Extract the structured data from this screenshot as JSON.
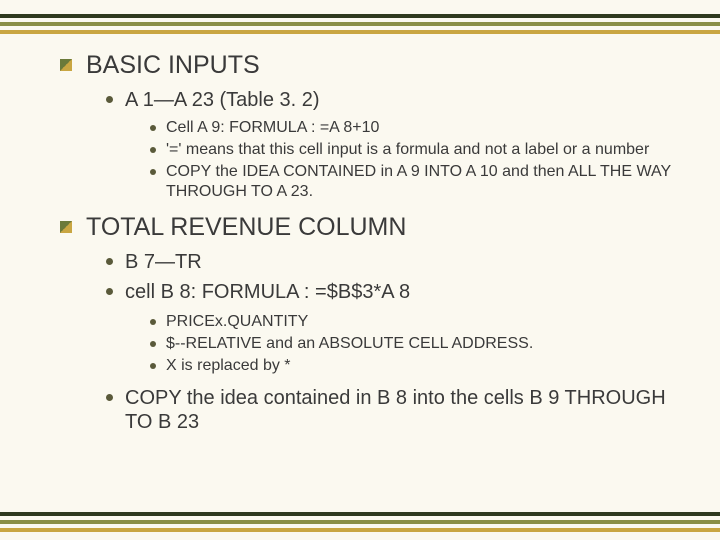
{
  "theme": {
    "background": "#fbf9f0",
    "stripe_dark": "#2f3a1f",
    "stripe_olive": "#8a8f46",
    "stripe_gold": "#c9a642",
    "text_color": "#3a3a3a",
    "bullet_dot_color": "#5a5a3a",
    "diamond_gradient_from": "#6b7a3a",
    "diamond_gradient_to": "#c9a642",
    "fontsize_lvl1": 25,
    "fontsize_lvl2": 20,
    "fontsize_lvl3": 16
  },
  "section1": {
    "title": "BASIC INPUTS",
    "item1": {
      "text": "A 1—A 23 (Table 3. 2)",
      "sub1": "Cell A 9:  FORMULA : =A 8+10",
      "sub2": " '=' means that this cell input is a formula and not a label or a number",
      "sub3": "COPY the IDEA CONTAINED in A 9 INTO A 10 and then ALL THE WAY THROUGH TO A 23."
    }
  },
  "section2": {
    "title": "TOTAL REVENUE COLUMN",
    "item1": {
      "text": "B 7—TR"
    },
    "item2": {
      "text": " cell B 8: FORMULA : =$B$3*A 8",
      "sub1": "PRICEx.QUANTITY",
      "sub2": "$--RELATIVE and an ABSOLUTE CELL ADDRESS.",
      "sub3": "X is replaced by *"
    },
    "item3": {
      "text": "COPY the idea contained in B 8 into the cells B 9 THROUGH TO B 23"
    }
  }
}
